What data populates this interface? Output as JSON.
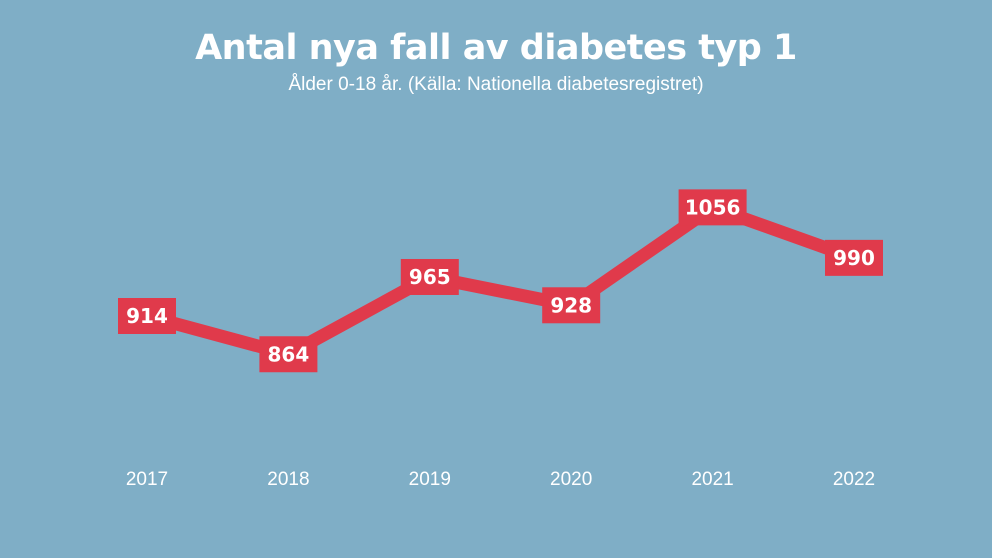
{
  "title": "Antal nya fall av diabetes typ 1",
  "subtitle": "Ålder 0-18 år. (Källa: Nationella diabetesregistret)",
  "colors": {
    "background": "#7faec6",
    "line": "#e03a4b",
    "text": "#ffffff"
  },
  "chart_data": {
    "type": "line",
    "title": "Antal nya fall av diabetes typ 1",
    "subtitle": "Ålder 0-18 år. (Källa: Nationella diabetesregistret)",
    "categories": [
      "2017",
      "2018",
      "2019",
      "2020",
      "2021",
      "2022"
    ],
    "values": [
      914,
      864,
      965,
      928,
      1056,
      990
    ],
    "data_labels": [
      "914",
      "864",
      "965",
      "928",
      "1056",
      "990"
    ],
    "xlabel": "",
    "ylabel": "",
    "grid": false,
    "legend": "none"
  }
}
